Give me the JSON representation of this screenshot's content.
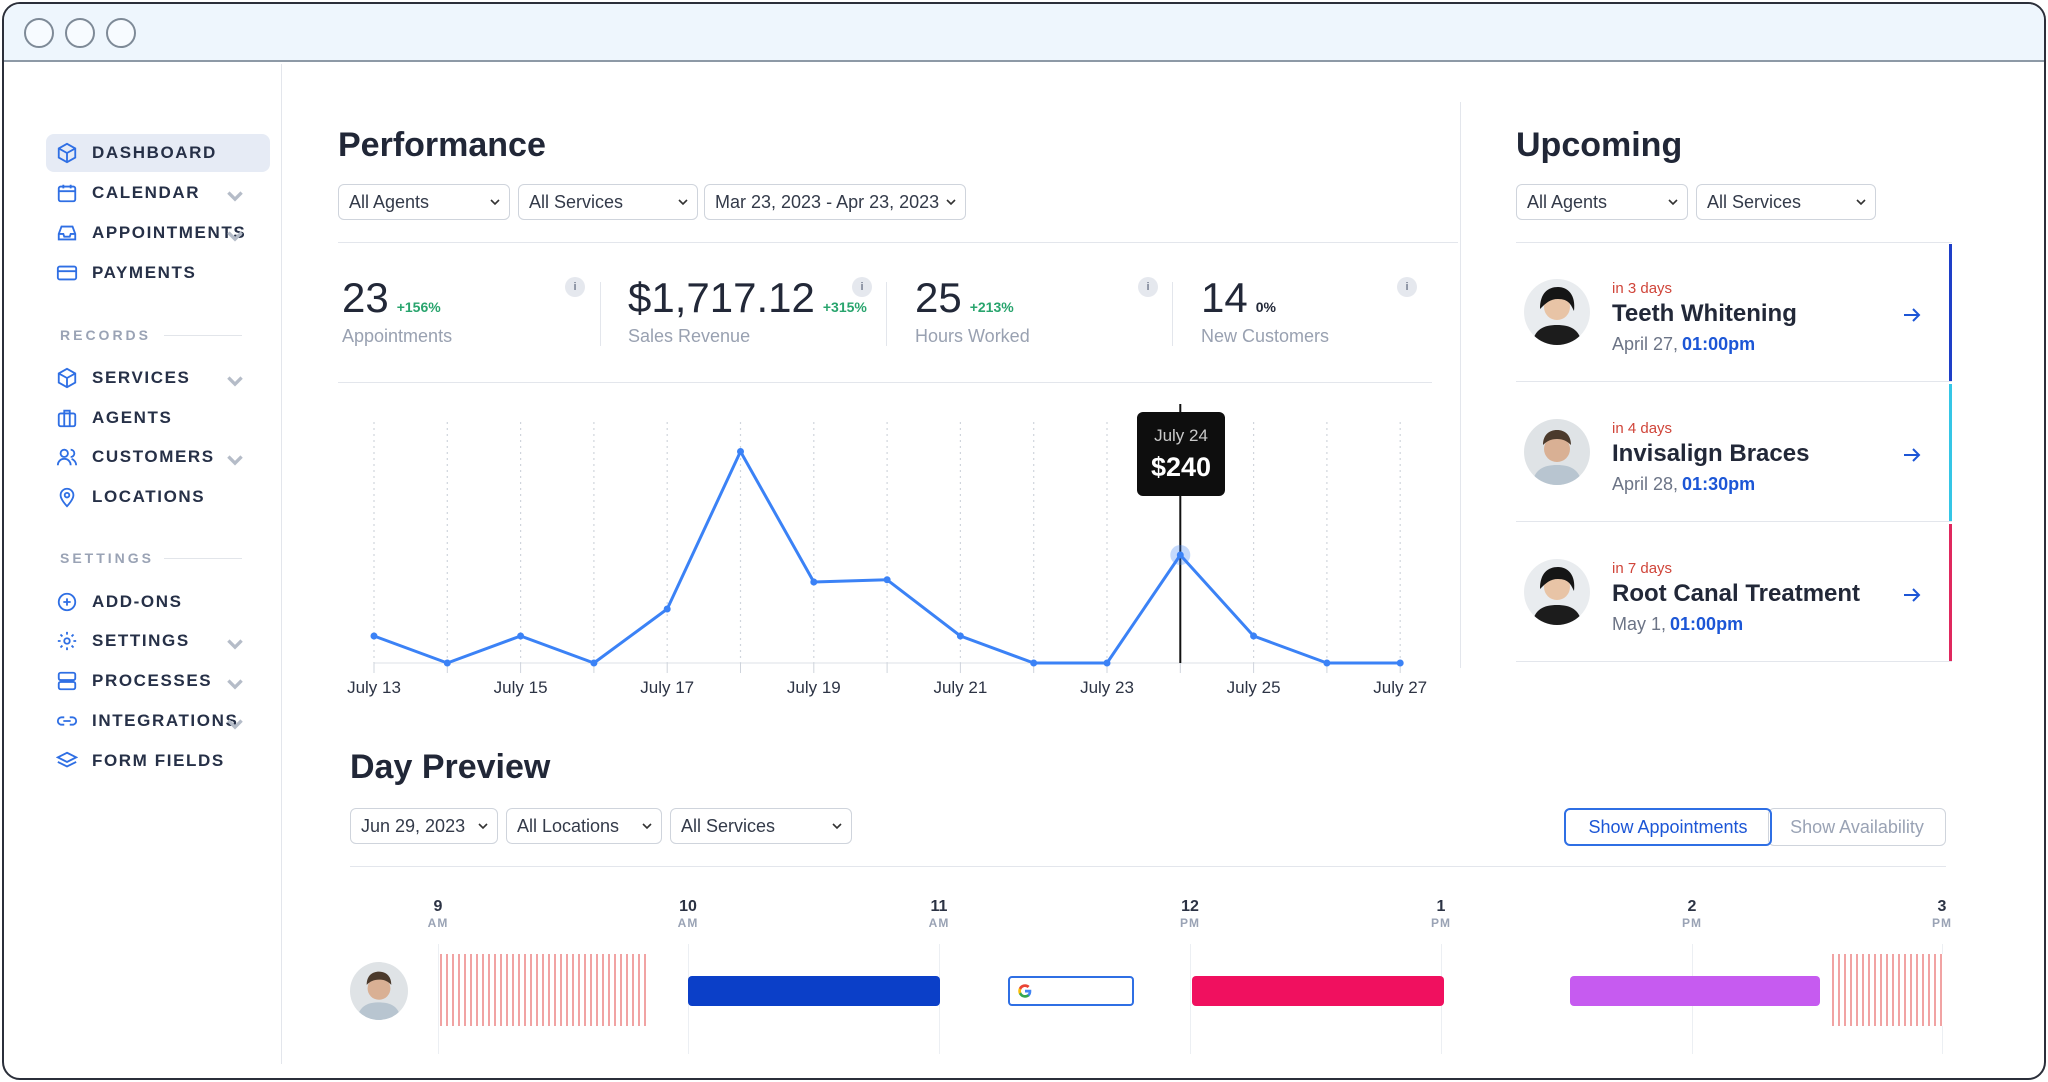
{
  "sidebar": {
    "main_items": [
      {
        "label": "DASHBOARD"
      },
      {
        "label": "CALENDAR"
      },
      {
        "label": "APPOINTMENTS"
      },
      {
        "label": "PAYMENTS"
      }
    ],
    "records_heading": "RECORDS",
    "records_items": [
      {
        "label": "SERVICES"
      },
      {
        "label": "AGENTS"
      },
      {
        "label": "CUSTOMERS"
      },
      {
        "label": "LOCATIONS"
      }
    ],
    "settings_heading": "SETTINGS",
    "settings_items": [
      {
        "label": "ADD-ONS"
      },
      {
        "label": "SETTINGS"
      },
      {
        "label": "PROCESSES"
      },
      {
        "label": "INTEGRATIONS"
      },
      {
        "label": "FORM FIELDS"
      }
    ]
  },
  "performance": {
    "title": "Performance",
    "filters": {
      "agents": "All Agents",
      "services": "All Services",
      "date_range": "Mar 23, 2023 - Apr 23, 2023"
    },
    "metrics": [
      {
        "value": "23",
        "change": "+156%",
        "label": "Appointments"
      },
      {
        "value": "$1,717.12",
        "change": "+315%",
        "label": "Sales Revenue"
      },
      {
        "value": "25",
        "change": "+213%",
        "label": "Hours Worked"
      },
      {
        "value": "14",
        "change": "0%",
        "label": "New Customers"
      }
    ],
    "info_glyph": "i",
    "tooltip": {
      "date": "July 24",
      "value": "$240"
    }
  },
  "chart_data": {
    "type": "line",
    "x": [
      "July 13",
      "July 14",
      "July 15",
      "July 16",
      "July 17",
      "July 18",
      "July 19",
      "July 20",
      "July 21",
      "July 22",
      "July 23",
      "July 24",
      "July 25",
      "July 26",
      "July 27"
    ],
    "tick_labels": [
      "July 13",
      "July 15",
      "July 17",
      "July 19",
      "July 21",
      "July 23",
      "July 25",
      "July 27"
    ],
    "values": [
      60,
      0,
      60,
      0,
      120,
      470,
      180,
      185,
      60,
      0,
      0,
      240,
      60,
      0,
      0
    ],
    "ylim": [
      0,
      500
    ],
    "highlight_index": 11,
    "grid": true,
    "color": "#3b82f6"
  },
  "upcoming": {
    "title": "Upcoming",
    "filters": {
      "agents": "All Agents",
      "services": "All Services"
    },
    "items": [
      {
        "due": "in 3 days",
        "title": "Teeth Whitening",
        "date": "April 27,",
        "time": "01:00pm",
        "color": "#1e3fc8"
      },
      {
        "due": "in 4 days",
        "title": "Invisalign Braces",
        "date": "April 28,",
        "time": "01:30pm",
        "color": "#35c6e6"
      },
      {
        "due": "in 7 days",
        "title": "Root Canal Treatment",
        "date": "May 1,",
        "time": "01:00pm",
        "color": "#e0285e"
      }
    ]
  },
  "day_preview": {
    "title": "Day Preview",
    "filters": {
      "date": "Jun 29, 2023",
      "locations": "All Locations",
      "services": "All Services"
    },
    "show_appointments": "Show Appointments",
    "show_availability": "Show Availability",
    "hours": [
      {
        "h": "9",
        "ap": "AM"
      },
      {
        "h": "10",
        "ap": "AM"
      },
      {
        "h": "11",
        "ap": "AM"
      },
      {
        "h": "12",
        "ap": "PM"
      },
      {
        "h": "1",
        "ap": "PM"
      },
      {
        "h": "2",
        "ap": "PM"
      },
      {
        "h": "3",
        "ap": "PM"
      }
    ],
    "block_colors": [
      "#0b3fc8",
      "#f0105f",
      "#c65bf0"
    ]
  }
}
